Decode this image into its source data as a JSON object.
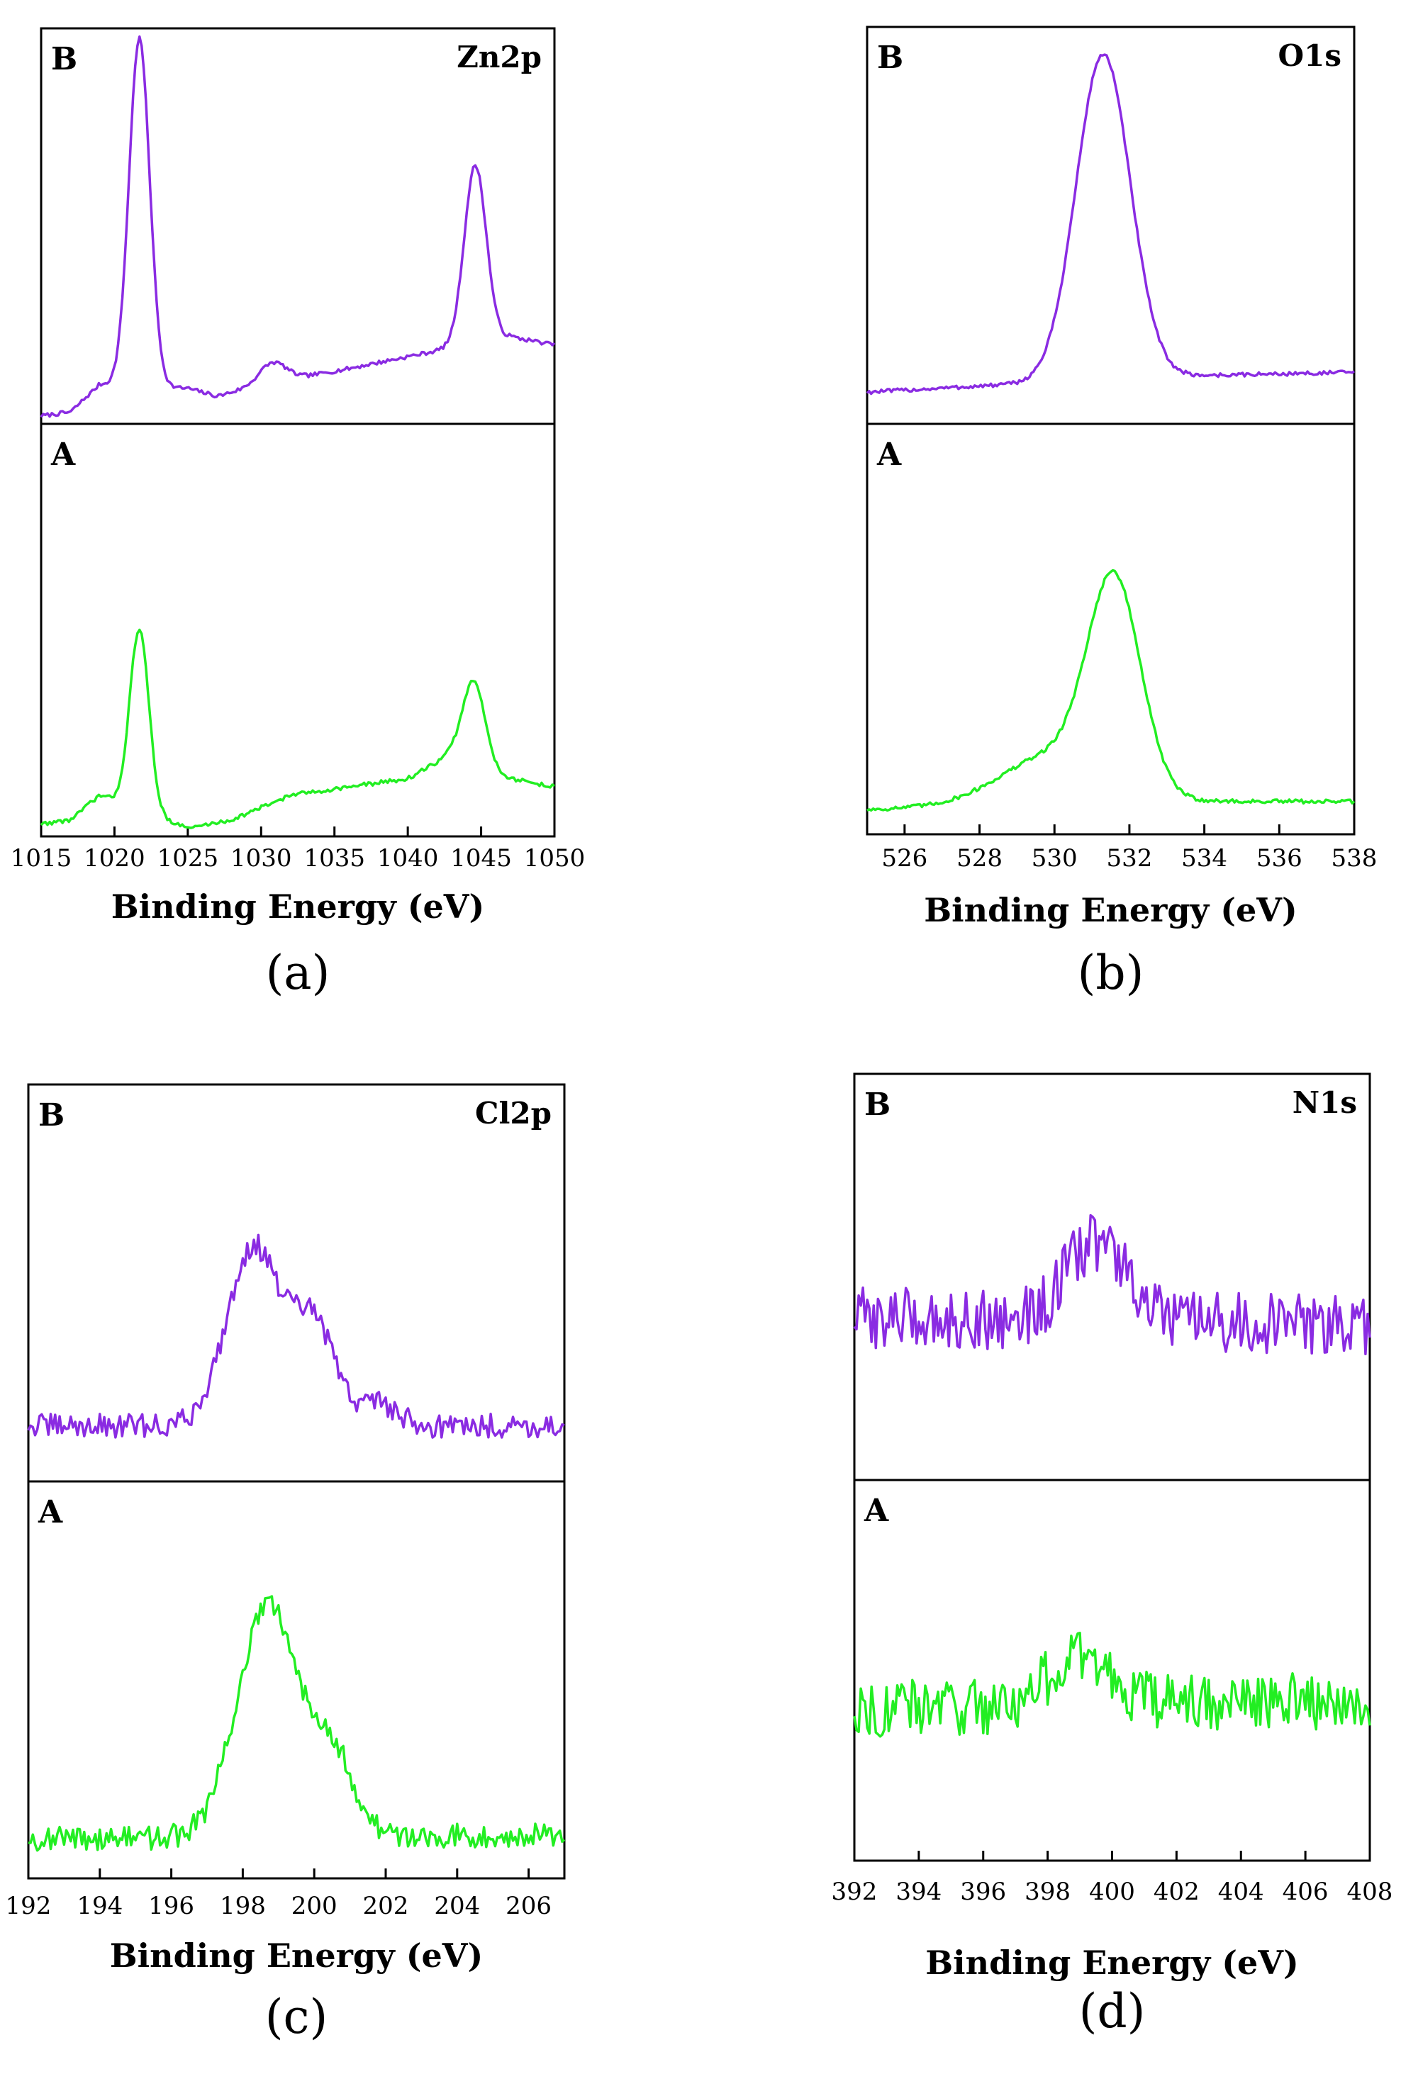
{
  "figure": {
    "colors": {
      "B": "#8a2be2",
      "A": "#22ee22",
      "axis": "#000000"
    }
  },
  "chart_data": [
    {
      "id": "a",
      "type": "line",
      "caption": "(a)",
      "element": "Zn2p",
      "xlabel": "Binding Energy (eV)",
      "xlim": [
        1015,
        1050
      ],
      "xticks": [
        1015,
        1020,
        1025,
        1030,
        1035,
        1040,
        1045,
        1050
      ],
      "noise": 0.005,
      "series": [
        {
          "name": "B",
          "baseline": [
            [
              1015,
              0.02
            ],
            [
              1017,
              0.03
            ],
            [
              1019,
              0.1
            ],
            [
              1025,
              0.09
            ],
            [
              1027,
              0.07
            ],
            [
              1030,
              0.1
            ],
            [
              1033,
              0.12
            ],
            [
              1036,
              0.14
            ],
            [
              1040,
              0.17
            ],
            [
              1044,
              0.2
            ],
            [
              1047,
              0.22
            ],
            [
              1050,
              0.2
            ]
          ],
          "peaks": [
            {
              "center": 1021.7,
              "height": 0.88,
              "width": 0.7
            },
            {
              "center": 1030.8,
              "height": 0.05,
              "width": 0.9
            },
            {
              "center": 1044.6,
              "height": 0.45,
              "width": 0.75
            }
          ]
        },
        {
          "name": "A",
          "baseline": [
            [
              1015,
              0.03
            ],
            [
              1017,
              0.04
            ],
            [
              1019,
              0.1
            ],
            [
              1025,
              0.02
            ],
            [
              1028,
              0.04
            ],
            [
              1032,
              0.1
            ],
            [
              1036,
              0.12
            ],
            [
              1040,
              0.14
            ],
            [
              1043,
              0.2
            ],
            [
              1047,
              0.14
            ],
            [
              1050,
              0.12
            ]
          ],
          "peaks": [
            {
              "center": 1021.7,
              "height": 0.44,
              "width": 0.65
            },
            {
              "center": 1044.5,
              "height": 0.2,
              "width": 0.75
            }
          ]
        }
      ]
    },
    {
      "id": "b",
      "type": "line",
      "caption": "(b)",
      "element": "O1s",
      "xlabel": "Binding Energy (eV)",
      "xlim": [
        525,
        538
      ],
      "xticks": [
        526,
        528,
        530,
        532,
        534,
        536,
        538
      ],
      "noise": 0.005,
      "series": [
        {
          "name": "B",
          "baseline": [
            [
              525,
              0.08
            ],
            [
              529,
              0.1
            ],
            [
              533,
              0.12
            ],
            [
              538,
              0.13
            ]
          ],
          "peaks": [
            {
              "center": 531.3,
              "height": 0.82,
              "width": 0.72
            }
          ]
        },
        {
          "name": "A",
          "baseline": [
            [
              525,
              0.06
            ],
            [
              528,
              0.07
            ],
            [
              533,
              0.08
            ],
            [
              538,
              0.08
            ]
          ],
          "peaks": [
            {
              "center": 531.6,
              "height": 0.5,
              "width": 0.7
            },
            {
              "center": 530.0,
              "height": 0.12,
              "width": 1.4
            }
          ]
        }
      ]
    },
    {
      "id": "c",
      "type": "line",
      "caption": "(c)",
      "element": "Cl2p",
      "xlabel": "Binding Energy (eV)",
      "xlim": [
        192,
        207
      ],
      "xticks": [
        192,
        194,
        196,
        198,
        200,
        202,
        204,
        206
      ],
      "noise": 0.03,
      "series": [
        {
          "name": "B",
          "baseline": [
            [
              192,
              0.14
            ],
            [
              207,
              0.14
            ]
          ],
          "peaks": [
            {
              "center": 198.3,
              "height": 0.45,
              "width": 0.75
            },
            {
              "center": 200.0,
              "height": 0.25,
              "width": 0.6
            },
            {
              "center": 201.8,
              "height": 0.06,
              "width": 0.5
            }
          ]
        },
        {
          "name": "A",
          "baseline": [
            [
              192,
              0.1
            ],
            [
              207,
              0.11
            ]
          ],
          "peaks": [
            {
              "center": 198.7,
              "height": 0.58,
              "width": 0.85
            },
            {
              "center": 200.5,
              "height": 0.2,
              "width": 0.6
            }
          ]
        }
      ]
    },
    {
      "id": "d",
      "type": "line",
      "caption": "(d)",
      "element": "N1s",
      "xlabel": "Binding Energy (eV)",
      "xlim": [
        392,
        408
      ],
      "xticks": [
        392,
        394,
        396,
        398,
        400,
        402,
        404,
        406,
        408
      ],
      "noise": 0.075,
      "series": [
        {
          "name": "B",
          "baseline": [
            [
              392,
              0.4
            ],
            [
              408,
              0.38
            ]
          ],
          "peaks": [
            {
              "center": 399.5,
              "height": 0.2,
              "width": 0.9
            }
          ]
        },
        {
          "name": "A",
          "baseline": [
            [
              392,
              0.4
            ],
            [
              408,
              0.42
            ]
          ],
          "peaks": [
            {
              "center": 399.0,
              "height": 0.12,
              "width": 1.0
            }
          ]
        }
      ]
    }
  ]
}
